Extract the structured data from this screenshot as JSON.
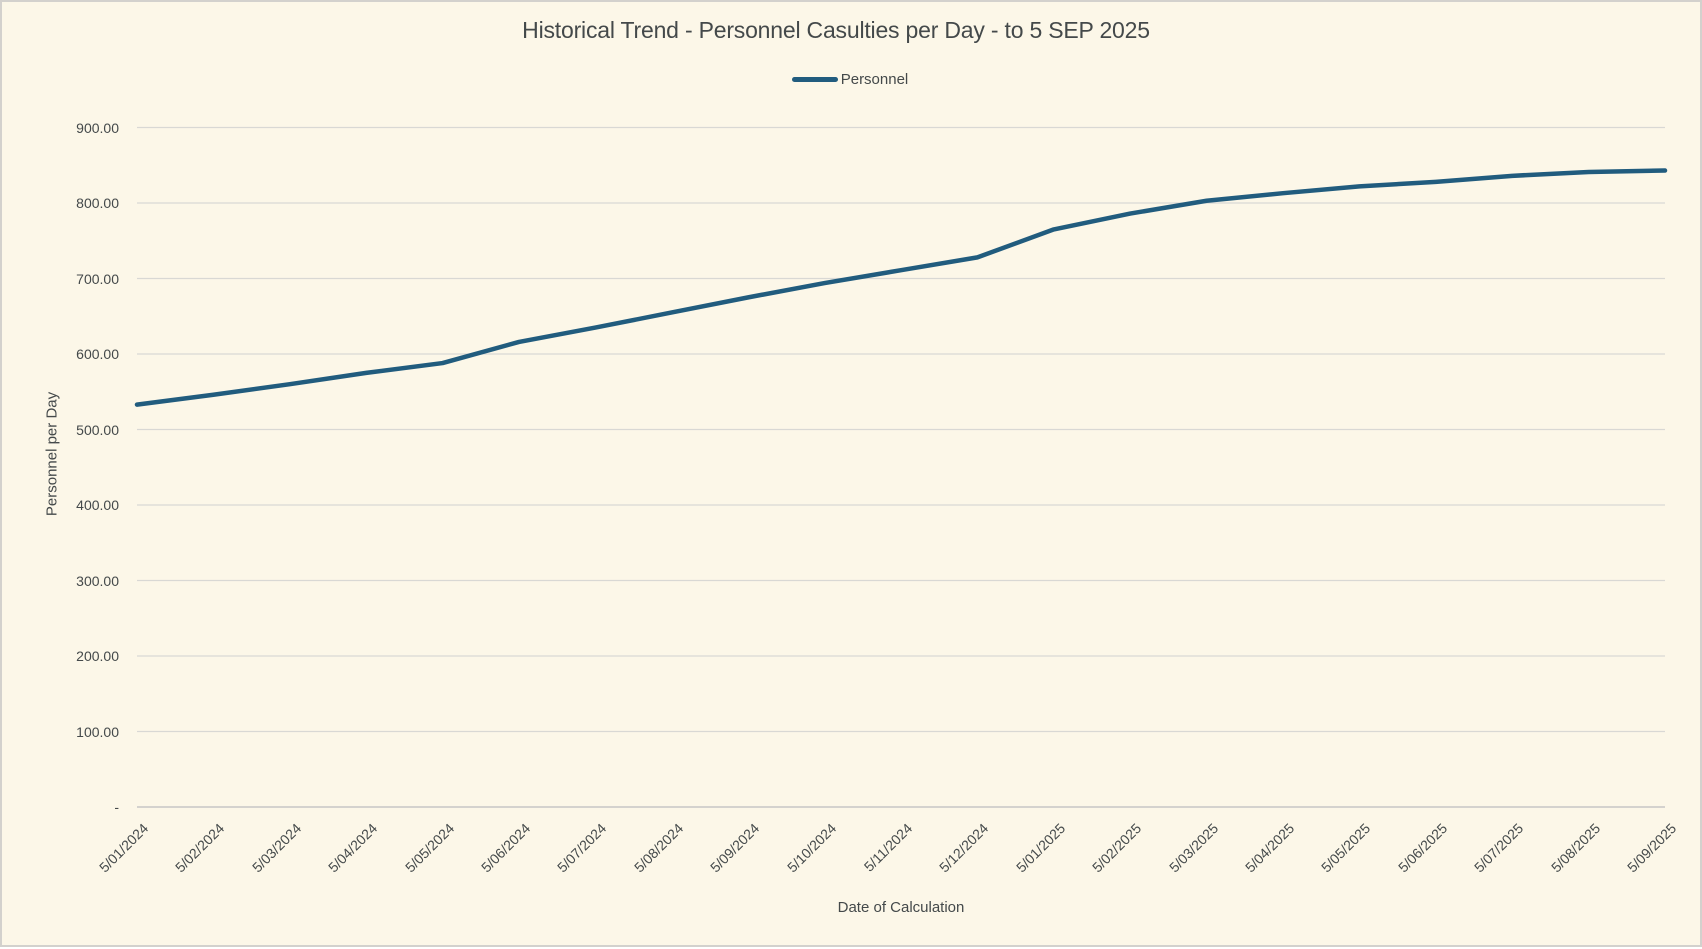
{
  "colors": {
    "background": "#FCF7E8",
    "border": "#D3D1CD",
    "gridline": "#D9D8D4",
    "axis_line": "#C6C6C6",
    "line": "#215C7E",
    "text": "#44494A"
  },
  "chart_data": {
    "type": "line",
    "title": "Historical Trend - Personnel Casulties per Day - to 5 SEP 2025",
    "xlabel": "Date of Calculation",
    "ylabel": "Personnel per Day",
    "legend_position": "top",
    "grid": true,
    "categories": [
      "5/01/2024",
      "5/02/2024",
      "5/03/2024",
      "5/04/2024",
      "5/05/2024",
      "5/06/2024",
      "5/07/2024",
      "5/08/2024",
      "5/09/2024",
      "5/10/2024",
      "5/11/2024",
      "5/12/2024",
      "5/01/2025",
      "5/02/2025",
      "5/03/2025",
      "5/04/2025",
      "5/05/2025",
      "5/06/2025",
      "5/07/2025",
      "5/08/2025",
      "5/09/2025"
    ],
    "series": [
      {
        "name": "Personnel",
        "color": "#215C7E",
        "values": [
          533,
          546,
          560,
          575,
          588,
          616,
          635,
          655,
          675,
          694,
          711,
          728,
          765,
          786,
          803,
          813,
          822,
          828,
          836,
          841,
          843
        ]
      }
    ],
    "y_axis": {
      "min": 0,
      "max": 900,
      "tick_interval": 100,
      "ticks": [
        {
          "value": 0,
          "label": "-"
        },
        {
          "value": 100,
          "label": "100.00"
        },
        {
          "value": 200,
          "label": "200.00"
        },
        {
          "value": 300,
          "label": "300.00"
        },
        {
          "value": 400,
          "label": "400.00"
        },
        {
          "value": 500,
          "label": "500.00"
        },
        {
          "value": 600,
          "label": "600.00"
        },
        {
          "value": 700,
          "label": "700.00"
        },
        {
          "value": 800,
          "label": "800.00"
        },
        {
          "value": 900,
          "label": "900.00"
        }
      ]
    }
  }
}
